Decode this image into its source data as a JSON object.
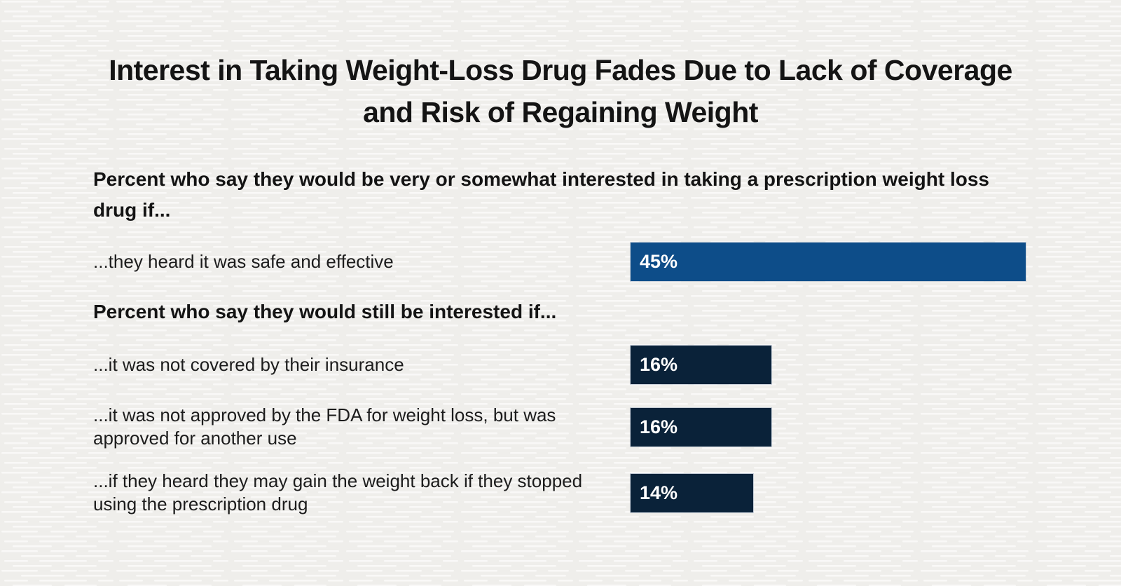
{
  "page": {
    "background_color": "#efeeeb",
    "texture_dash_color": "#ffffff"
  },
  "colors": {
    "title_text": "#141414",
    "label_text": "#1c1c1c",
    "primary_bar_blue": "#0d4d89",
    "secondary_bar_navy": "#0a2239",
    "bar_value_text": "#ffffff"
  },
  "chart_data": {
    "type": "bar",
    "orientation": "horizontal",
    "title": "Interest in Taking Weight-Loss Drug Fades Due to Lack of Coverage and Risk of Regaining Weight",
    "xlim": [
      0,
      45
    ],
    "value_suffix": "%",
    "grid": false,
    "legend": "none",
    "groups": [
      {
        "heading": "Percent who say they would be very or somewhat interested in taking a prescription weight loss drug if...",
        "rows": [
          {
            "label": "...they heard it was safe and effective",
            "value": 45,
            "display": "45%",
            "color": "#0d4d89"
          }
        ]
      },
      {
        "heading": "Percent who say they would still be interested if...",
        "rows": [
          {
            "label": "...it was not covered by their insurance",
            "value": 16,
            "display": "16%",
            "color": "#0a2239"
          },
          {
            "label": "...it was not approved by the FDA for weight loss, but was approved for another use",
            "value": 16,
            "display": "16%",
            "color": "#0a2239"
          },
          {
            "label": "...if they heard they may gain the weight back if they stopped using the prescription drug",
            "value": 14,
            "display": "14%",
            "color": "#0a2239"
          }
        ]
      }
    ]
  }
}
